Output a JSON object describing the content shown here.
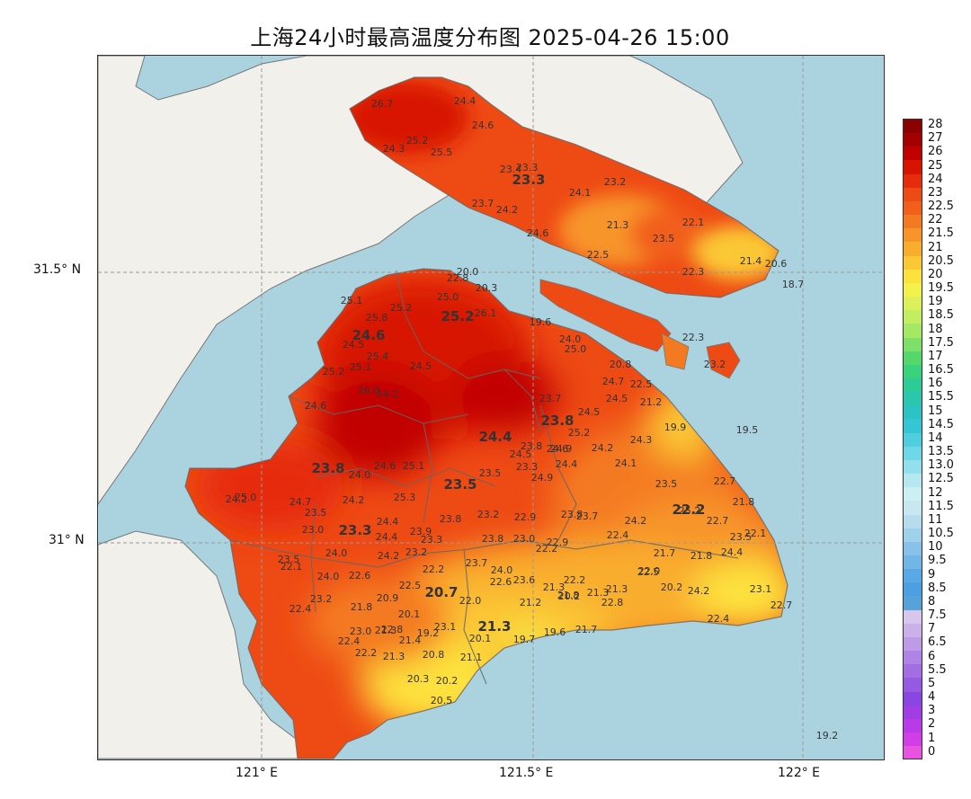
{
  "title": "上海24小时最高温度分布图 2025-04-26 15:00",
  "axes": {
    "y_labels": [
      "31.5° N",
      "31° N"
    ],
    "x_labels": [
      "121° E",
      "121.5° E",
      "122° E"
    ]
  },
  "colorbar": {
    "ticks": [
      "28",
      "27",
      "26",
      "25",
      "24",
      "23",
      "22.5",
      "22",
      "21.5",
      "21",
      "20.5",
      "20",
      "19.5",
      "19",
      "18.5",
      "18",
      "17.5",
      "17",
      "16.5",
      "16",
      "15.5",
      "15",
      "14.5",
      "14",
      "13.5",
      "13.0",
      "12.5",
      "12",
      "11.5",
      "11",
      "10.5",
      "10",
      "9.5",
      "9",
      "8.5",
      "8",
      "7.5",
      "7",
      "6.5",
      "6",
      "5.5",
      "5",
      "4",
      "3",
      "2",
      "1",
      "0"
    ],
    "colors": [
      "#8b0000",
      "#a50000",
      "#c10000",
      "#d81400",
      "#e62c0c",
      "#ee4a14",
      "#f25f1c",
      "#f47a22",
      "#f7942a",
      "#f9ad2f",
      "#fbc835",
      "#fde23c",
      "#f4f04c",
      "#dcf05a",
      "#c4ee62",
      "#a4e864",
      "#7ee068",
      "#54d86c",
      "#3ad27c",
      "#2ccc96",
      "#2ac6ae",
      "#2ac4c4",
      "#34c6d4",
      "#4ecfe0",
      "#6ed8e8",
      "#92e0ee",
      "#b6e8f2",
      "#cceff4",
      "#c9e7f1",
      "#b7dcee",
      "#9fd0ec",
      "#88c2ea",
      "#72b6e8",
      "#5aa8e6",
      "#4aa0e2",
      "#58a2dc",
      "#d8c6ec",
      "#cbb0ea",
      "#be9ae8",
      "#b084e6",
      "#a36ee4",
      "#965ae2",
      "#8a46e2",
      "#a03ee6",
      "#b83ae8",
      "#d23ee6",
      "#ea52e2"
    ]
  },
  "map_labels": [
    {
      "t": "26.7"
    },
    {
      "t": "24.4"
    },
    {
      "t": "24.6"
    },
    {
      "t": "25.2"
    },
    {
      "t": "24.3"
    },
    {
      "t": "25.5"
    },
    {
      "t": "23.4"
    },
    {
      "t": "23.3"
    },
    {
      "t": "23.3",
      "b": 1
    },
    {
      "t": "24.1"
    },
    {
      "t": "23.2"
    },
    {
      "t": "23.7"
    },
    {
      "t": "24.2"
    },
    {
      "t": "21.3"
    },
    {
      "t": "22.1"
    },
    {
      "t": "24.6"
    },
    {
      "t": "23.5"
    },
    {
      "t": "22.5"
    },
    {
      "t": "21.4"
    },
    {
      "t": "20.6"
    },
    {
      "t": "22.3"
    },
    {
      "t": "18.7"
    },
    {
      "t": "20.0"
    },
    {
      "t": "22.8"
    },
    {
      "t": "20.3"
    },
    {
      "t": "25.0"
    },
    {
      "t": "25.1"
    },
    {
      "t": "25.2"
    },
    {
      "t": "25.2",
      "b": 1
    },
    {
      "t": "26.1"
    },
    {
      "t": "19.6"
    },
    {
      "t": "25.8"
    },
    {
      "t": "24.6",
      "b": 1
    },
    {
      "t": "24.5"
    },
    {
      "t": "25.4"
    },
    {
      "t": "25.1"
    },
    {
      "t": "25.2"
    },
    {
      "t": "26.0"
    },
    {
      "t": "24.2"
    },
    {
      "t": "24.6"
    },
    {
      "t": "24.0"
    },
    {
      "t": "25.0"
    },
    {
      "t": "24.5"
    },
    {
      "t": "22.3"
    },
    {
      "t": "20.8"
    },
    {
      "t": "23.2"
    },
    {
      "t": "24.7"
    },
    {
      "t": "22.5"
    },
    {
      "t": "23.7"
    },
    {
      "t": "24.5"
    },
    {
      "t": "21.2"
    },
    {
      "t": "23.8",
      "b": 1
    },
    {
      "t": "24.5"
    },
    {
      "t": "19.9"
    },
    {
      "t": "19.5"
    },
    {
      "t": "24.3"
    },
    {
      "t": "24.4",
      "b": 1
    },
    {
      "t": "25.2"
    },
    {
      "t": "24.2"
    },
    {
      "t": "24.9"
    },
    {
      "t": "23.8"
    },
    {
      "t": "24.6"
    },
    {
      "t": "24.1"
    },
    {
      "t": "24.5"
    },
    {
      "t": "22.7"
    },
    {
      "t": "24.4"
    },
    {
      "t": "23.8",
      "b": 1
    },
    {
      "t": "24.0"
    },
    {
      "t": "24.6"
    },
    {
      "t": "25.1"
    },
    {
      "t": "23.5"
    },
    {
      "t": "23.3"
    },
    {
      "t": "23.5",
      "b": 1
    },
    {
      "t": "24.9"
    },
    {
      "t": "23.5"
    },
    {
      "t": "21.8"
    },
    {
      "t": "25.3"
    },
    {
      "t": "24.2"
    },
    {
      "t": "24.2"
    },
    {
      "t": "25.0"
    },
    {
      "t": "23.5"
    },
    {
      "t": "24.7"
    },
    {
      "t": "25.2"
    },
    {
      "t": "23.8"
    },
    {
      "t": "22.2",
      "b": 1
    },
    {
      "t": "22.7"
    },
    {
      "t": "24.4"
    },
    {
      "t": "23.3",
      "b": 1
    },
    {
      "t": "23.8"
    },
    {
      "t": "23.2"
    },
    {
      "t": "22.9"
    },
    {
      "t": "23.7"
    },
    {
      "t": "24.2"
    },
    {
      "t": "22.4"
    },
    {
      "t": "23.5"
    },
    {
      "t": "22.1"
    },
    {
      "t": "23.0"
    },
    {
      "t": "24.4"
    },
    {
      "t": "23.9"
    },
    {
      "t": "23.3"
    },
    {
      "t": "23.8"
    },
    {
      "t": "23.0"
    },
    {
      "t": "22.9"
    },
    {
      "t": "22.2"
    },
    {
      "t": "21.7"
    },
    {
      "t": "21.8"
    },
    {
      "t": "24.4"
    },
    {
      "t": "24.0"
    },
    {
      "t": "24.2"
    },
    {
      "t": "23.2"
    },
    {
      "t": "23.5"
    },
    {
      "t": "22.1"
    },
    {
      "t": "23.7"
    },
    {
      "t": "24.0"
    },
    {
      "t": "22.6"
    },
    {
      "t": "24.0"
    },
    {
      "t": "22.2"
    },
    {
      "t": "22.6"
    },
    {
      "t": "23.6"
    },
    {
      "t": "22.2"
    },
    {
      "t": "22.5"
    },
    {
      "t": "22.5"
    },
    {
      "t": "22.0"
    },
    {
      "t": "21.3"
    },
    {
      "t": "21.8"
    },
    {
      "t": "21.3"
    },
    {
      "t": "21.3"
    },
    {
      "t": "20.2"
    },
    {
      "t": "24.2"
    },
    {
      "t": "23.1"
    },
    {
      "t": "23.2"
    },
    {
      "t": "21.8"
    },
    {
      "t": "20.9"
    },
    {
      "t": "20.7",
      "b": 1
    },
    {
      "t": "22.0"
    },
    {
      "t": "21.2"
    },
    {
      "t": "20.2"
    },
    {
      "t": "22.8"
    },
    {
      "t": "22.7"
    },
    {
      "t": "22.4"
    },
    {
      "t": "20.1"
    },
    {
      "t": "22.8"
    },
    {
      "t": "22.4"
    },
    {
      "t": "23.0"
    },
    {
      "t": "21.3"
    },
    {
      "t": "23.1"
    },
    {
      "t": "21.3",
      "b": 1
    },
    {
      "t": "22.4"
    },
    {
      "t": "21.4"
    },
    {
      "t": "19.2"
    },
    {
      "t": "20.1"
    },
    {
      "t": "19.7"
    },
    {
      "t": "19.6"
    },
    {
      "t": "21.7"
    },
    {
      "t": "22.2"
    },
    {
      "t": "21.3"
    },
    {
      "t": "20.8"
    },
    {
      "t": "21.1"
    },
    {
      "t": "20.3"
    },
    {
      "t": "20.2"
    },
    {
      "t": "20.5"
    },
    {
      "t": "19.2"
    }
  ]
}
